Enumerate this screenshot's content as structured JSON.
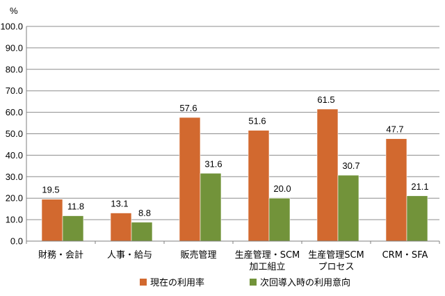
{
  "chart_data": {
    "type": "bar",
    "title": "",
    "xlabel": "",
    "ylabel": "%",
    "ylim": [
      0,
      100
    ],
    "ytick_step": 10,
    "yticks": [
      "0.0",
      "10.0",
      "20.0",
      "30.0",
      "40.0",
      "50.0",
      "60.0",
      "70.0",
      "80.0",
      "90.0",
      "100.0"
    ],
    "grid": true,
    "legend_position": "bottom",
    "categories": [
      [
        "財務・会計"
      ],
      [
        "人事・給与"
      ],
      [
        "販売管理"
      ],
      [
        "生産管理・SCM",
        "加工組立"
      ],
      [
        "生産管理SCM",
        "プロセス"
      ],
      [
        "CRM・SFA"
      ]
    ],
    "series": [
      {
        "name": "現在の利用率",
        "color": "#D2692F",
        "values": [
          19.5,
          13.1,
          57.6,
          51.6,
          61.5,
          47.7
        ],
        "labels": [
          "19.5",
          "13.1",
          "57.6",
          "51.6",
          "61.5",
          "47.7"
        ]
      },
      {
        "name": "次回導入時の利用意向",
        "color": "#72933A",
        "values": [
          11.8,
          8.8,
          31.6,
          20.0,
          30.7,
          21.1
        ],
        "labels": [
          "11.8",
          "8.8",
          "31.6",
          "20.0",
          "30.7",
          "21.1"
        ]
      }
    ]
  }
}
